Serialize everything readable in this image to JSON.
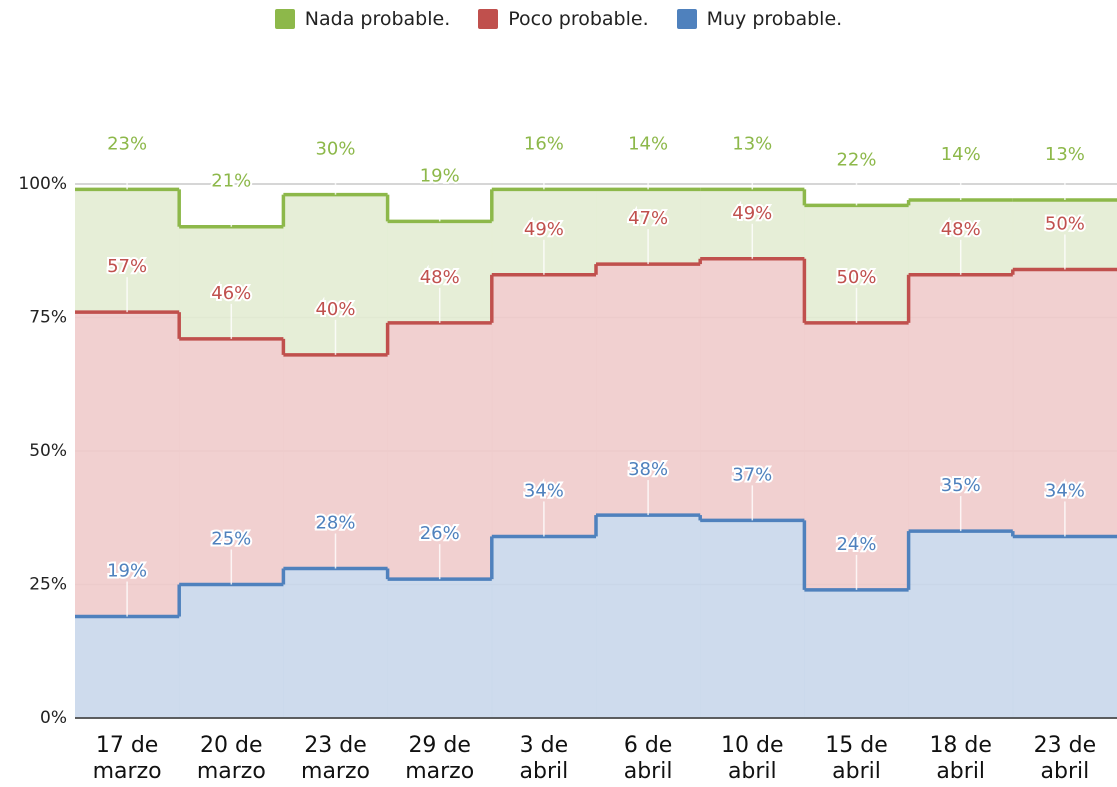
{
  "chart_data": {
    "type": "stepped-area-stacked",
    "categories": [
      "17 de marzo",
      "20 de marzo",
      "23 de marzo",
      "29 de marzo",
      "3 de abril",
      "6 de abril",
      "10 de abril",
      "15 de abril",
      "18 de abril",
      "23 de abril"
    ],
    "series": [
      {
        "name": "Nada probable.",
        "color": "#8db84a",
        "fill": "#e3ecd3",
        "values": [
          23,
          21,
          30,
          19,
          16,
          14,
          13,
          22,
          14,
          13
        ],
        "value_labels": [
          "23%",
          "21%",
          "30%",
          "19%",
          "16%",
          "14%",
          "13%",
          "22%",
          "14%",
          "13%"
        ]
      },
      {
        "name": "Poco probable.",
        "color": "#c0504d",
        "fill": "#f0cbcb",
        "values": [
          57,
          46,
          40,
          48,
          49,
          47,
          49,
          50,
          48,
          50
        ],
        "value_labels": [
          "57%",
          "46%",
          "40%",
          "48%",
          "49%",
          "47%",
          "49%",
          "50%",
          "48%",
          "50%"
        ]
      },
      {
        "name": "Muy probable.",
        "color": "#4f81bd",
        "fill": "#c9d7eb",
        "values": [
          19,
          25,
          28,
          26,
          34,
          38,
          37,
          24,
          35,
          34
        ],
        "value_labels": [
          "19%",
          "25%",
          "28%",
          "26%",
          "34%",
          "38%",
          "37%",
          "24%",
          "35%",
          "34%"
        ]
      }
    ],
    "ylim": [
      0,
      100
    ],
    "yticks": [
      {
        "value": 0,
        "label": "0%"
      },
      {
        "value": 25,
        "label": "25%"
      },
      {
        "value": 50,
        "label": "50%"
      },
      {
        "value": 75,
        "label": "75%"
      },
      {
        "value": 100,
        "label": "100%"
      }
    ],
    "grid": true,
    "legend": "top"
  }
}
